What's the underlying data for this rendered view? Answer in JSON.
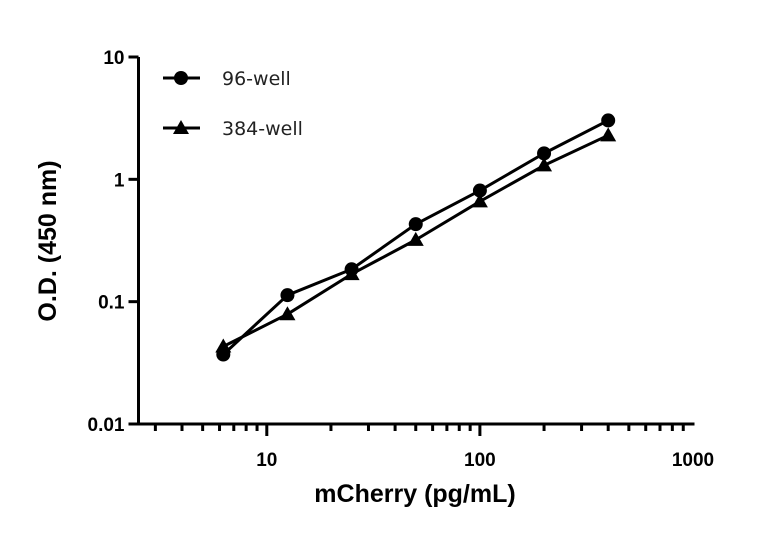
{
  "chart_data": {
    "type": "line",
    "title": "",
    "xlabel": "mCherry (pg/mL)",
    "ylabel": "O.D. (450 nm)",
    "xscale": "log",
    "yscale": "log",
    "xlim": [
      2.5,
      1000
    ],
    "ylim": [
      0.01,
      10
    ],
    "x_ticks": [
      10,
      100,
      1000
    ],
    "x_tick_labels": [
      "10",
      "100",
      "1000"
    ],
    "y_ticks": [
      0.01,
      0.1,
      1,
      10
    ],
    "y_tick_labels": [
      "0.01",
      "0.1",
      "1",
      "10"
    ],
    "grid": false,
    "legend_position": "top-left",
    "color": "#000000",
    "x": [
      6.25,
      12.5,
      25,
      50,
      100,
      200,
      400
    ],
    "series": [
      {
        "name": "96-well",
        "marker": "circle",
        "values": [
          0.037,
          0.113,
          0.184,
          0.43,
          0.81,
          1.63,
          3.03
        ]
      },
      {
        "name": "384-well",
        "marker": "triangle",
        "values": [
          0.043,
          0.079,
          0.168,
          0.32,
          0.66,
          1.3,
          2.29
        ]
      }
    ]
  }
}
